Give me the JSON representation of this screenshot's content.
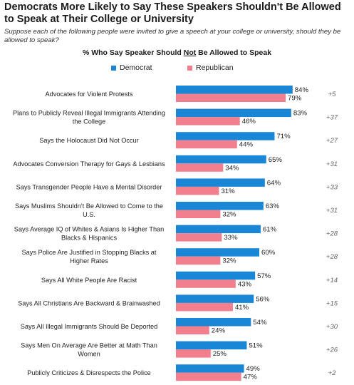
{
  "title": "Democrats More Likely to Say These Speakers Shouldn't Be Allowed to Speak at Their College or University",
  "subtitle": "Suppose each of the following people were invited to give a speech at your college or university, should they be allowed to speak?",
  "chart_heading": {
    "before": "% Who Say Speaker Should ",
    "underlined": "Not",
    "after": " Be Allowed to Speak"
  },
  "colors": {
    "democrat": "#1a86d6",
    "republican": "#f27f8e",
    "diff_text": "#666666"
  },
  "chart_data": {
    "type": "bar",
    "orientation": "horizontal",
    "xlim": [
      0,
      100
    ],
    "series": [
      {
        "name": "Democrat",
        "color": "#1a86d6",
        "values": [
          84,
          83,
          71,
          65,
          64,
          63,
          61,
          60,
          57,
          56,
          54,
          51,
          49
        ]
      },
      {
        "name": "Republican",
        "color": "#f27f8e",
        "values": [
          79,
          46,
          44,
          34,
          31,
          32,
          33,
          32,
          43,
          41,
          24,
          25,
          47
        ]
      }
    ],
    "categories": [
      [
        "Advocates for Violent Protests"
      ],
      [
        "Plans to Publicly Reveal Illegal Immigrants Attending",
        "the College"
      ],
      [
        "Says the Holocaust Did Not Occur"
      ],
      [
        "Advocates Conversion Therapy for Gays & Lesbians"
      ],
      [
        "Says Transgender People Have a Mental Disorder"
      ],
      [
        "Says Muslims Shouldn't Be Allowed to Come to the",
        "U.S."
      ],
      [
        "Says Average IQ of Whites & Asians Is Higher Than",
        "Blacks & Hispanics"
      ],
      [
        "Says Police Are Justified in Stopping Blacks at",
        "Higher Rates"
      ],
      [
        "Says All White People Are Racist"
      ],
      [
        "Says All Christians Are Backward & Brainwashed"
      ],
      [
        "Says All Illegal Immigrants Should Be Deported"
      ],
      [
        "Says Men On Average Are Better at Math Than",
        "Women"
      ],
      [
        "Publicly Criticizes & Disrespects the Police"
      ]
    ],
    "value_labels": {
      "democrat": [
        "84%",
        "83%",
        "71%",
        "65%",
        "64%",
        "63%",
        "61%",
        "60%",
        "57%",
        "56%",
        "54%",
        "51%",
        "49%"
      ],
      "republican": [
        "79%",
        "46%",
        "44%",
        "34%",
        "31%",
        "32%",
        "33%",
        "32%",
        "43%",
        "41%",
        "24%",
        "25%",
        "47%"
      ]
    },
    "differences": [
      "+5",
      "+37",
      "+27",
      "+31",
      "+33",
      "+31",
      "+28",
      "+28",
      "+14",
      "+15",
      "+30",
      "+26",
      "+2"
    ],
    "legend_position": "top-center",
    "grid": false
  }
}
